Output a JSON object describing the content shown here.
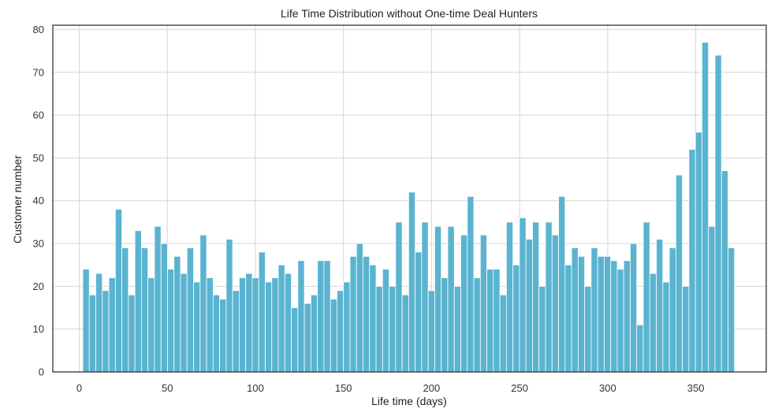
{
  "chart_data": {
    "type": "bar",
    "title": "Life Time Distribution without One-time Deal Hunters",
    "xlabel": "Life time (days)",
    "ylabel": "Customer number",
    "xlim": [
      -15,
      390
    ],
    "ylim": [
      0,
      81
    ],
    "xticks": [
      0,
      50,
      100,
      150,
      200,
      250,
      300,
      350
    ],
    "yticks": [
      0,
      10,
      20,
      30,
      40,
      50,
      60,
      70,
      80
    ],
    "grid": true,
    "bar_color": "#5ab4d0",
    "bins": {
      "start": 2,
      "width": 3.7
    },
    "values": [
      24,
      18,
      23,
      19,
      22,
      38,
      29,
      18,
      33,
      29,
      22,
      34,
      30,
      24,
      27,
      23,
      29,
      21,
      32,
      22,
      18,
      17,
      31,
      19,
      22,
      23,
      22,
      28,
      21,
      22,
      25,
      23,
      15,
      26,
      16,
      18,
      26,
      26,
      17,
      19,
      21,
      27,
      30,
      27,
      25,
      20,
      24,
      20,
      35,
      18,
      42,
      28,
      35,
      19,
      34,
      22,
      34,
      20,
      32,
      41,
      22,
      32,
      24,
      24,
      18,
      35,
      25,
      36,
      31,
      35,
      20,
      35,
      32,
      41,
      25,
      29,
      27,
      20,
      29,
      27,
      27,
      26,
      24,
      26,
      30,
      11,
      35,
      23,
      31,
      21,
      29,
      46,
      20,
      52,
      56,
      77,
      34,
      74,
      47,
      29
    ]
  }
}
